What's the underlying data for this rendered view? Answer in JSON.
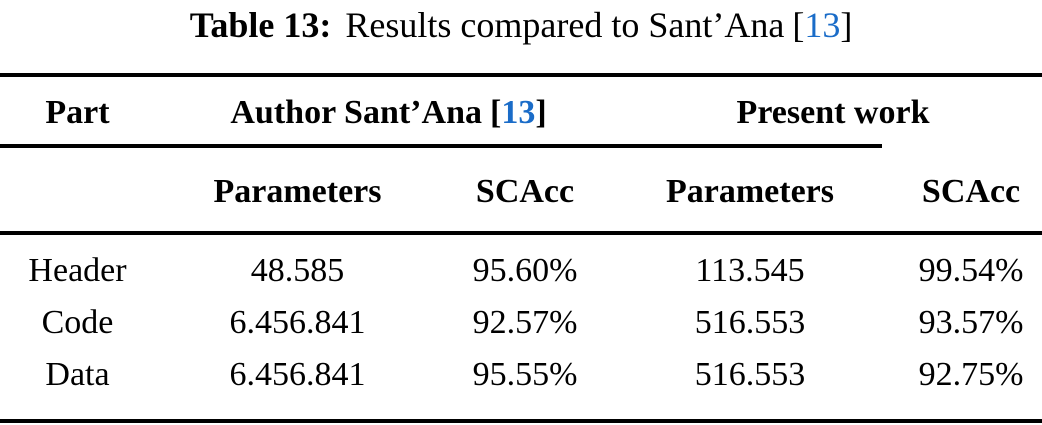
{
  "colors": {
    "background": "#ffffff",
    "text": "#000000",
    "citation_blue": "#1a6cc8",
    "rule": "#000000"
  },
  "caption": {
    "label": "Table 13:",
    "body": "Results compared to Sant’Ana",
    "cite_open": "[",
    "cite_number": "13",
    "cite_close": "]"
  },
  "table": {
    "header_row_1": {
      "part": "Part",
      "author_group_prefix": "Author Sant’Ana",
      "author_cite_open": "[",
      "author_cite_number": "13",
      "author_cite_close": "]",
      "present_group": "Present work"
    },
    "header_row_2": {
      "author_parameters": "Parameters",
      "author_scacc": "SCAcc",
      "present_parameters": "Parameters",
      "present_scacc": "SCAcc"
    },
    "rows": [
      {
        "part": "Header",
        "author_parameters": "48.585",
        "author_scacc": "95.60%",
        "present_parameters": "113.545",
        "present_scacc": "99.54%"
      },
      {
        "part": "Code",
        "author_parameters": "6.456.841",
        "author_scacc": "92.57%",
        "present_parameters": "516.553",
        "present_scacc": "93.57%"
      },
      {
        "part": "Data",
        "author_parameters": "6.456.841",
        "author_scacc": "95.55%",
        "present_parameters": "516.553",
        "present_scacc": "92.75%"
      }
    ]
  }
}
